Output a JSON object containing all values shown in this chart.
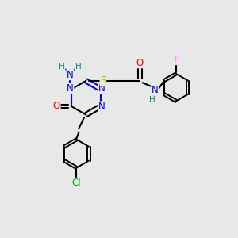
{
  "bg_color": "#e8e8e8",
  "atom_colors": {
    "C": "#000000",
    "N": "#0000ee",
    "O": "#ff0000",
    "S": "#ccaa00",
    "F": "#ff00ff",
    "Cl": "#00aa00",
    "H": "#008888",
    "bond": "#000000"
  },
  "bond_lw": 1.5,
  "font_size": 8.5
}
